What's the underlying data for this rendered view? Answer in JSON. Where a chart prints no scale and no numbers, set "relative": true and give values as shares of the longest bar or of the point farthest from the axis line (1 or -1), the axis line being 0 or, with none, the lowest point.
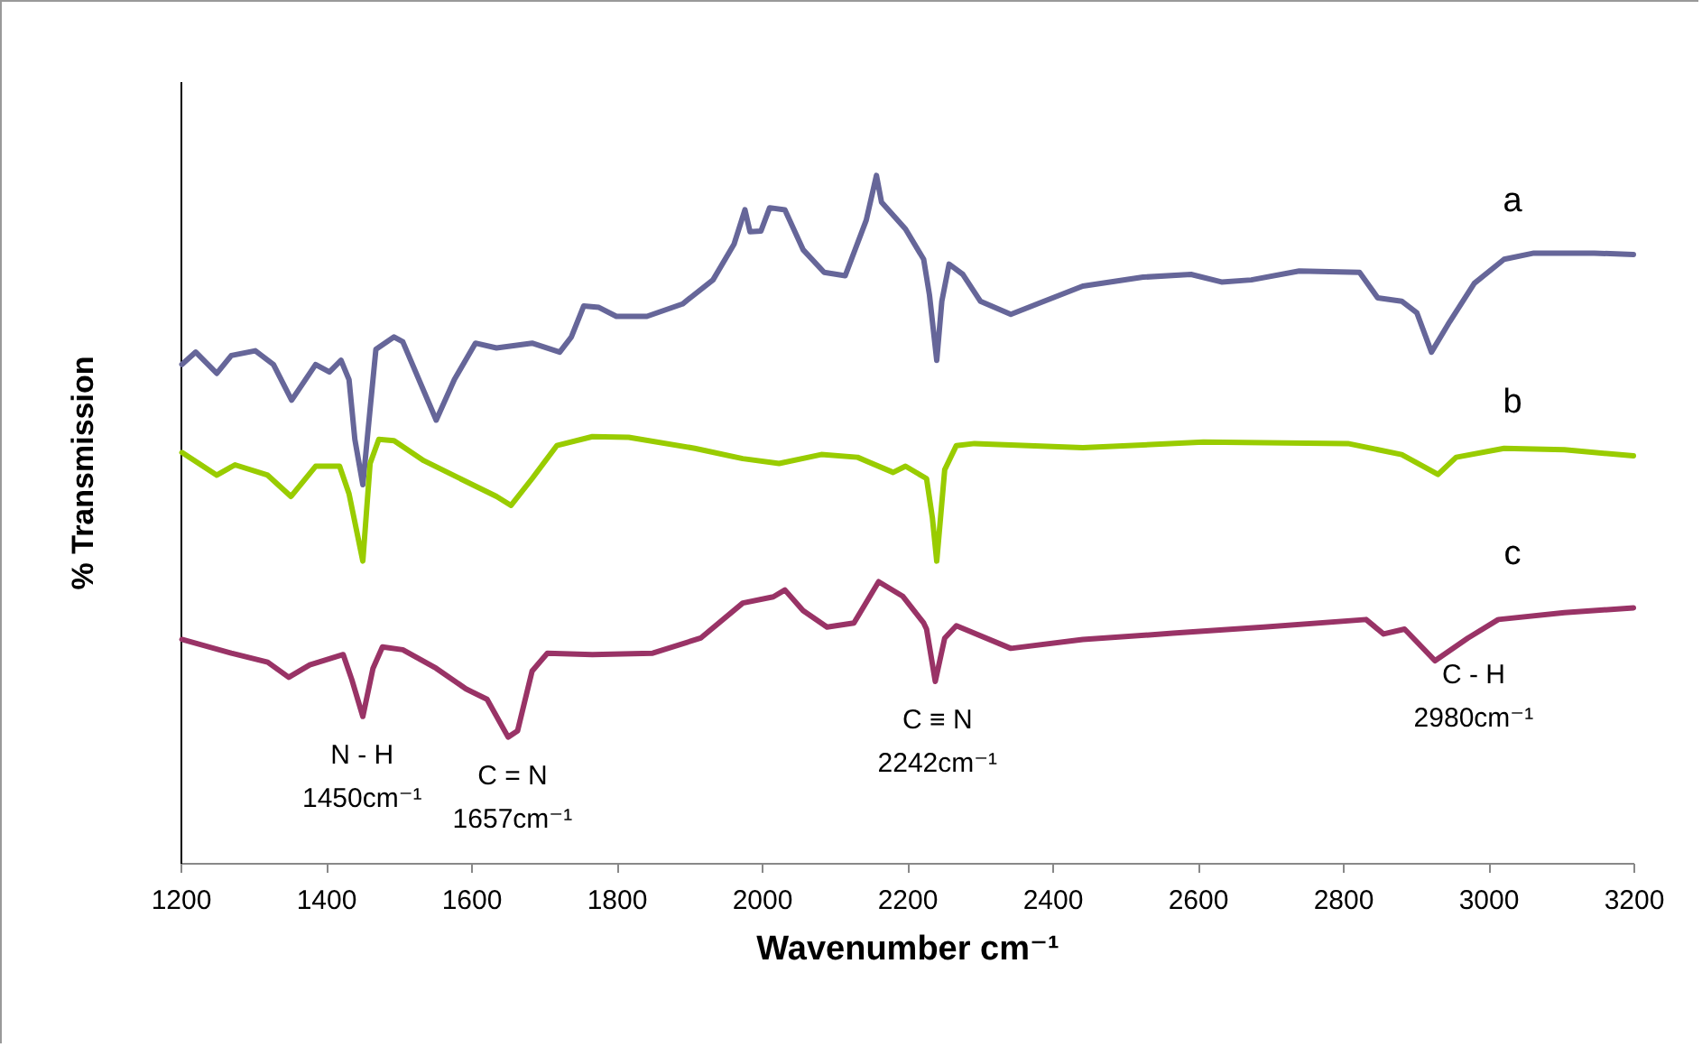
{
  "chart_data": {
    "type": "line",
    "relative": true,
    "xlabel": "Wavenumber cm⁻¹",
    "ylabel": "% Transmission",
    "xlim": [
      1200,
      3200
    ],
    "xticks": [
      1200,
      1400,
      1600,
      1800,
      2000,
      2200,
      2400,
      2600,
      2800,
      3000,
      3200
    ],
    "grid": false,
    "marker": "none",
    "line_style": "solid",
    "series": [
      {
        "name": "a",
        "color": "#666699",
        "x": [
          1202,
          1221,
          1250,
          1270,
          1303,
          1328,
          1353,
          1386,
          1405,
          1421,
          1432,
          1440,
          1451,
          1461,
          1469,
          1494,
          1506,
          1552,
          1577,
          1606,
          1635,
          1684,
          1722,
          1738,
          1755,
          1776,
          1800,
          1842,
          1891,
          1933,
          1962,
          1977,
          1984,
          1999,
          2011,
          2032,
          2057,
          2086,
          2115,
          2144,
          2158,
          2165,
          2198,
          2223,
          2231,
          2241,
          2248,
          2258,
          2277,
          2301,
          2343,
          2384,
          2442,
          2525,
          2591,
          2633,
          2674,
          2740,
          2823,
          2848,
          2881,
          2902,
          2922,
          2947,
          2981,
          3022,
          3063,
          3146,
          3200
        ],
        "values": [
          0.725,
          0.743,
          0.712,
          0.738,
          0.745,
          0.725,
          0.673,
          0.725,
          0.714,
          0.731,
          0.703,
          0.616,
          0.55,
          0.66,
          0.747,
          0.765,
          0.758,
          0.644,
          0.703,
          0.756,
          0.749,
          0.756,
          0.743,
          0.765,
          0.81,
          0.808,
          0.795,
          0.795,
          0.813,
          0.848,
          0.9,
          0.95,
          0.918,
          0.919,
          0.953,
          0.95,
          0.892,
          0.859,
          0.854,
          0.935,
          1,
          0.961,
          0.922,
          0.878,
          0.826,
          0.731,
          0.817,
          0.871,
          0.856,
          0.817,
          0.798,
          0.815,
          0.839,
          0.852,
          0.856,
          0.845,
          0.848,
          0.861,
          0.859,
          0.822,
          0.817,
          0.8,
          0.743,
          0.787,
          0.843,
          0.878,
          0.887,
          0.887,
          0.885
        ]
      },
      {
        "name": "b",
        "color": "#99cc00",
        "x": [
          1202,
          1250,
          1275,
          1320,
          1352,
          1386,
          1419,
          1432,
          1451,
          1461,
          1473,
          1494,
          1535,
          1635,
          1655,
          1684,
          1718,
          1767,
          1817,
          1908,
          1974,
          2024,
          2082,
          2132,
          2181,
          2198,
          2227,
          2235,
          2241,
          2252,
          2268,
          2293,
          2442,
          2608,
          2807,
          2881,
          2931,
          2956,
          3022,
          3105,
          3200
        ],
        "values": [
          0.597,
          0.564,
          0.579,
          0.564,
          0.533,
          0.577,
          0.577,
          0.537,
          0.439,
          0.581,
          0.616,
          0.614,
          0.585,
          0.533,
          0.52,
          0.559,
          0.607,
          0.62,
          0.619,
          0.603,
          0.588,
          0.581,
          0.594,
          0.59,
          0.568,
          0.577,
          0.559,
          0.502,
          0.439,
          0.572,
          0.607,
          0.61,
          0.604,
          0.612,
          0.61,
          0.594,
          0.565,
          0.59,
          0.603,
          0.601,
          0.592
        ]
      },
      {
        "name": "c",
        "color": "#993366",
        "x": [
          1202,
          1270,
          1320,
          1349,
          1378,
          1424,
          1436,
          1451,
          1465,
          1478,
          1506,
          1552,
          1593,
          1622,
          1651,
          1664,
          1684,
          1705,
          1767,
          1850,
          1916,
          1974,
          2016,
          2032,
          2057,
          2090,
          2127,
          2161,
          2194,
          2223,
          2227,
          2239,
          2252,
          2268,
          2343,
          2442,
          2566,
          2691,
          2832,
          2856,
          2885,
          2927,
          2972,
          3014,
          3105,
          3200
        ],
        "values": [
          0.325,
          0.305,
          0.292,
          0.27,
          0.288,
          0.303,
          0.266,
          0.213,
          0.283,
          0.314,
          0.31,
          0.283,
          0.253,
          0.238,
          0.183,
          0.192,
          0.279,
          0.305,
          0.303,
          0.305,
          0.327,
          0.378,
          0.387,
          0.397,
          0.367,
          0.343,
          0.349,
          0.409,
          0.388,
          0.349,
          0.34,
          0.264,
          0.327,
          0.345,
          0.312,
          0.325,
          0.334,
          0.343,
          0.354,
          0.333,
          0.34,
          0.294,
          0.327,
          0.354,
          0.364,
          0.371
        ]
      }
    ],
    "annotations": [
      {
        "text": "N - H\n1450cm⁻¹",
        "x": 1450,
        "y": 0.213
      },
      {
        "text": "C = N\n1657cm⁻¹",
        "x": 1657,
        "y": 0.183
      },
      {
        "text": "C ≡ N\n2242cm⁻¹",
        "x": 2242,
        "y": 0.264
      },
      {
        "text": "C - H\n2980cm⁻¹",
        "x": 2980,
        "y": 0.33
      }
    ]
  }
}
